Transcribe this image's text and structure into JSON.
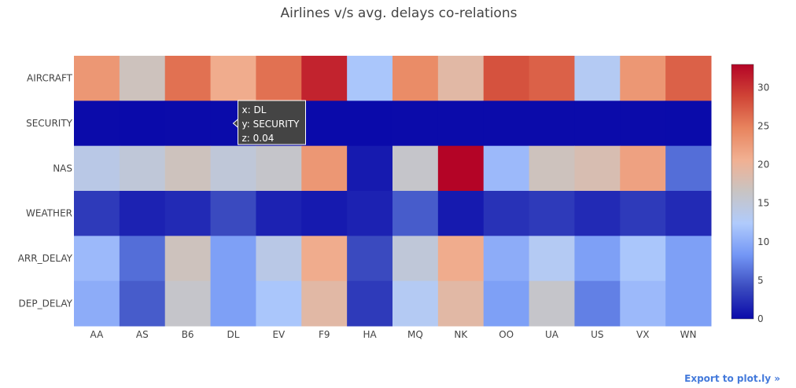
{
  "export_link": "Export to plot.ly »",
  "chart_data": {
    "type": "heatmap",
    "title": "Airlines v/s avg. delays co-relations",
    "xlabel": "",
    "ylabel": "",
    "x": [
      "AA",
      "AS",
      "B6",
      "DL",
      "EV",
      "F9",
      "HA",
      "MQ",
      "NK",
      "OO",
      "UA",
      "US",
      "VX",
      "WN"
    ],
    "y": [
      "AIRCRAFT",
      "SECURITY",
      "NAS",
      "WEATHER",
      "ARR_DELAY",
      "DEP_DELAY"
    ],
    "z": [
      [
        23,
        17,
        26,
        21,
        26,
        31,
        12,
        24,
        19,
        28,
        27,
        13,
        23,
        27
      ],
      [
        0.05,
        0.03,
        0.05,
        0.04,
        0.05,
        0.03,
        0.01,
        0.05,
        0.06,
        0.05,
        0.05,
        0.06,
        0.05,
        0.04
      ],
      [
        14,
        15,
        17,
        15,
        16,
        23,
        1,
        16,
        33,
        11,
        17,
        18,
        22,
        6
      ],
      [
        3,
        1.5,
        2,
        4,
        1.5,
        1,
        1.5,
        5,
        1,
        2.5,
        3,
        2,
        3,
        2
      ],
      [
        11,
        6,
        17,
        9,
        14,
        21,
        4,
        15,
        21,
        10,
        13,
        9,
        12,
        9
      ],
      [
        10,
        5,
        16,
        9,
        12,
        19,
        3,
        13,
        19,
        9,
        16,
        7,
        11,
        9
      ]
    ],
    "zlim": [
      0,
      33
    ],
    "colorbar_ticks": [
      0,
      5,
      10,
      15,
      20,
      25,
      30
    ],
    "colorscale": [
      "#0a0aaa",
      "#3b4cc0",
      "#7396f5",
      "#b0cbfc",
      "#c8c4c3",
      "#f1b092",
      "#e8845e",
      "#d04436",
      "#b40426"
    ],
    "hover": {
      "x_label": "x: DL",
      "y_label": "y: SECURITY",
      "z_label": "z: 0.04",
      "col": 3,
      "row": 1
    },
    "hover_bg": "#444444"
  }
}
